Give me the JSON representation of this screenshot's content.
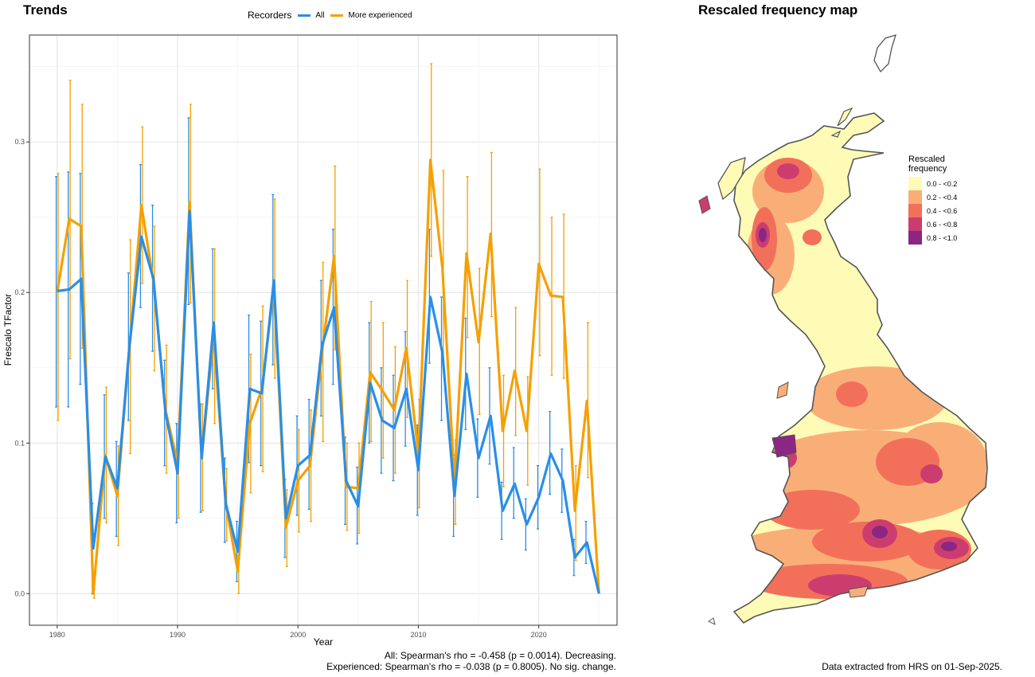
{
  "trends": {
    "title": "Trends",
    "legend_title": "Recorders",
    "stats_line1": "All: Spearman's rho = -0.458 (p = 0.0014). Decreasing.",
    "stats_line2": "Experienced: Spearman's rho = -0.038 (p = 0.8005). No sig. change."
  },
  "chart_data": {
    "type": "line",
    "xlabel": "Year",
    "ylabel": "Frescalo TFactor",
    "xlim": [
      1977.7,
      2026.5
    ],
    "ylim": [
      -0.021,
      0.371
    ],
    "xticks": [
      1980,
      1990,
      2000,
      2010,
      2020
    ],
    "yticks": [
      0.0,
      0.1,
      0.2,
      0.3
    ],
    "ytick_labels": [
      "0.0",
      "0.1",
      "0.2",
      "0.3"
    ],
    "grid": true,
    "legend_position": "top",
    "x": [
      1980,
      1981,
      1982,
      1983,
      1984,
      1985,
      1986,
      1987,
      1988,
      1989,
      1990,
      1991,
      1992,
      1993,
      1994,
      1995,
      1996,
      1997,
      1998,
      1999,
      2000,
      2001,
      2002,
      2003,
      2004,
      2005,
      2006,
      2007,
      2008,
      2009,
      2010,
      2011,
      2012,
      2013,
      2014,
      2015,
      2016,
      2017,
      2018,
      2019,
      2020,
      2021,
      2022,
      2023,
      2024,
      2025
    ],
    "series": [
      {
        "name": "All",
        "color": "#2a8ee6",
        "values": [
          0.201,
          0.202,
          0.209,
          0.03,
          0.091,
          0.07,
          0.164,
          0.237,
          0.209,
          0.12,
          0.08,
          0.254,
          0.09,
          0.18,
          0.06,
          0.028,
          0.136,
          0.133,
          0.208,
          0.05,
          0.085,
          0.092,
          0.165,
          0.19,
          0.075,
          0.058,
          0.14,
          0.115,
          0.11,
          0.136,
          0.082,
          0.197,
          0.16,
          0.065,
          0.146,
          0.09,
          0.118,
          0.055,
          0.073,
          0.046,
          0.064,
          0.093,
          0.075,
          0.024,
          0.034,
          0.0
        ],
        "lower": [
          0.124,
          0.124,
          0.139,
          0.0,
          0.05,
          0.038,
          0.115,
          0.19,
          0.161,
          0.085,
          0.047,
          0.192,
          0.054,
          0.136,
          0.034,
          0.008,
          0.087,
          0.085,
          0.152,
          0.024,
          0.052,
          0.056,
          0.118,
          0.139,
          0.046,
          0.033,
          0.1,
          0.08,
          0.075,
          0.098,
          0.052,
          0.153,
          0.115,
          0.038,
          0.109,
          0.064,
          0.086,
          0.036,
          0.05,
          0.029,
          0.043,
          0.066,
          0.054,
          0.012,
          0.02,
          0.0
        ],
        "upper": [
          0.277,
          0.28,
          0.279,
          0.06,
          0.132,
          0.101,
          0.213,
          0.285,
          0.258,
          0.155,
          0.113,
          0.316,
          0.126,
          0.229,
          0.09,
          0.048,
          0.185,
          0.181,
          0.265,
          0.076,
          0.118,
          0.129,
          0.208,
          0.242,
          0.104,
          0.084,
          0.18,
          0.15,
          0.145,
          0.174,
          0.112,
          0.242,
          0.197,
          0.092,
          0.183,
          0.116,
          0.15,
          0.074,
          0.097,
          0.063,
          0.085,
          0.121,
          0.096,
          0.036,
          0.048,
          0.0
        ]
      },
      {
        "name": "More experienced",
        "color": "#f5a000",
        "values": [
          0.2,
          0.249,
          0.244,
          0.0,
          0.092,
          0.065,
          0.163,
          0.258,
          0.207,
          0.122,
          0.087,
          0.26,
          0.09,
          0.171,
          0.06,
          0.015,
          0.113,
          0.136,
          0.203,
          0.044,
          0.075,
          0.085,
          0.16,
          0.224,
          0.071,
          0.07,
          0.147,
          0.135,
          0.122,
          0.163,
          0.093,
          0.288,
          0.216,
          0.074,
          0.226,
          0.167,
          0.239,
          0.108,
          0.148,
          0.108,
          0.219,
          0.198,
          0.197,
          0.055,
          0.128,
          0.0
        ],
        "lower": [
          0.115,
          0.156,
          0.163,
          -0.003,
          0.047,
          0.032,
          0.093,
          0.206,
          0.148,
          0.08,
          0.05,
          0.193,
          0.055,
          0.113,
          0.035,
          0.0,
          0.067,
          0.081,
          0.143,
          0.018,
          0.041,
          0.048,
          0.101,
          0.162,
          0.042,
          0.04,
          0.101,
          0.09,
          0.08,
          0.117,
          0.057,
          0.224,
          0.154,
          0.046,
          0.17,
          0.119,
          0.184,
          0.071,
          0.105,
          0.072,
          0.158,
          0.145,
          0.143,
          0.022,
          0.077,
          0.0
        ],
        "upper": [
          0.279,
          0.341,
          0.325,
          0.003,
          0.137,
          0.098,
          0.235,
          0.31,
          0.244,
          0.165,
          0.112,
          0.325,
          0.126,
          0.229,
          0.083,
          0.029,
          0.159,
          0.191,
          0.262,
          0.069,
          0.109,
          0.122,
          0.22,
          0.284,
          0.1,
          0.1,
          0.194,
          0.18,
          0.164,
          0.208,
          0.129,
          0.352,
          0.281,
          0.102,
          0.277,
          0.216,
          0.293,
          0.145,
          0.19,
          0.144,
          0.282,
          0.25,
          0.252,
          0.085,
          0.18,
          0.0
        ]
      }
    ]
  },
  "map": {
    "title": "Rescaled frequency map",
    "legend_title_line1": "Rescaled",
    "legend_title_line2": "frequency",
    "bins": [
      {
        "label": "0.0 - <0.2",
        "color": "#fefbb6"
      },
      {
        "label": "0.2 - <0.4",
        "color": "#f9ae78"
      },
      {
        "label": "0.4 - <0.6",
        "color": "#f2705a"
      },
      {
        "label": "0.6 - <0.8",
        "color": "#cc3d6f"
      },
      {
        "label": "0.8 - <1.0",
        "color": "#8b2683"
      }
    ],
    "extract_note": "Data extracted from HRS on 01-Sep-2025."
  }
}
